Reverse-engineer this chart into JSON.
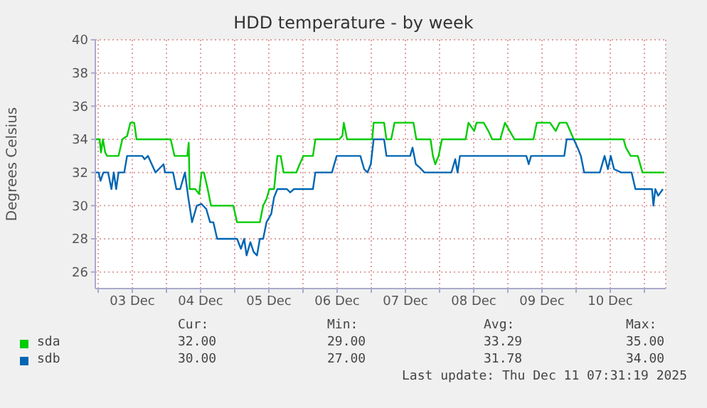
{
  "chart_data": {
    "type": "line",
    "title": "HDD temperature - by week",
    "ylabel": "Degrees Celsius",
    "xlim": [
      "2025-12-02T23:00",
      "2025-12-11T07:30"
    ],
    "xticks": [
      {
        "value": "2025-12-03T00:00",
        "label": null
      },
      {
        "value": "2025-12-03T12:00",
        "label": "03 Dec"
      },
      {
        "value": "2025-12-04T00:00",
        "label": null
      },
      {
        "value": "2025-12-04T12:00",
        "label": "04 Dec"
      },
      {
        "value": "2025-12-05T00:00",
        "label": null
      },
      {
        "value": "2025-12-05T12:00",
        "label": "05 Dec"
      },
      {
        "value": "2025-12-06T00:00",
        "label": null
      },
      {
        "value": "2025-12-06T12:00",
        "label": "06 Dec"
      },
      {
        "value": "2025-12-07T00:00",
        "label": null
      },
      {
        "value": "2025-12-07T12:00",
        "label": "07 Dec"
      },
      {
        "value": "2025-12-08T00:00",
        "label": null
      },
      {
        "value": "2025-12-08T12:00",
        "label": "08 Dec"
      },
      {
        "value": "2025-12-09T00:00",
        "label": null
      },
      {
        "value": "2025-12-09T12:00",
        "label": "09 Dec"
      },
      {
        "value": "2025-12-10T00:00",
        "label": null
      },
      {
        "value": "2025-12-10T12:00",
        "label": "10 Dec"
      },
      {
        "value": "2025-12-11T00:00",
        "label": null
      }
    ],
    "ylim": [
      25,
      40
    ],
    "yticks": [
      26,
      28,
      30,
      32,
      34,
      36,
      38,
      40
    ],
    "grid": true,
    "legend": "bottom",
    "marker": "none",
    "line_style": "solid",
    "series": [
      {
        "name": "sda",
        "color": "#00cc00",
        "x": [
          "2025-12-02T23:00",
          "2025-12-03T00:30",
          "2025-12-03T01:00",
          "2025-12-03T01:40",
          "2025-12-03T02:30",
          "2025-12-03T03:10",
          "2025-12-03T07:10",
          "2025-12-03T08:30",
          "2025-12-03T10:10",
          "2025-12-03T11:20",
          "2025-12-03T12:40",
          "2025-12-03T13:30",
          "2025-12-04T01:30",
          "2025-12-04T02:50",
          "2025-12-04T07:20",
          "2025-12-04T07:50",
          "2025-12-04T08:10",
          "2025-12-04T10:10",
          "2025-12-04T11:30",
          "2025-12-04T12:20",
          "2025-12-04T13:10",
          "2025-12-04T14:30",
          "2025-12-04T15:40",
          "2025-12-04T23:30",
          "2025-12-05T00:50",
          "2025-12-05T08:50",
          "2025-12-05T10:00",
          "2025-12-05T11:10",
          "2025-12-05T12:10",
          "2025-12-05T13:50",
          "2025-12-05T15:00",
          "2025-12-05T16:10",
          "2025-12-05T17:10",
          "2025-12-05T21:40",
          "2025-12-05T22:50",
          "2025-12-06T00:10",
          "2025-12-06T03:30",
          "2025-12-06T04:20",
          "2025-12-06T12:40",
          "2025-12-06T13:50",
          "2025-12-06T14:20",
          "2025-12-06T15:30",
          "2025-12-07T00:20",
          "2025-12-07T00:50",
          "2025-12-07T04:30",
          "2025-12-07T05:20",
          "2025-12-07T07:00",
          "2025-12-07T08:10",
          "2025-12-07T14:50",
          "2025-12-07T15:50",
          "2025-12-07T20:50",
          "2025-12-07T21:40",
          "2025-12-07T22:30",
          "2025-12-07T23:40",
          "2025-12-08T00:50",
          "2025-12-08T09:10",
          "2025-12-08T10:10",
          "2025-12-08T12:10",
          "2025-12-08T13:00",
          "2025-12-08T15:30",
          "2025-12-08T17:10",
          "2025-12-08T18:30",
          "2025-12-08T21:20",
          "2025-12-08T23:00",
          "2025-12-09T00:40",
          "2025-12-09T02:20",
          "2025-12-09T09:00",
          "2025-12-09T10:10",
          "2025-12-09T14:50",
          "2025-12-09T16:50",
          "2025-12-09T18:10",
          "2025-12-09T20:40",
          "2025-12-09T23:10",
          "2025-12-10T16:40",
          "2025-12-10T17:30",
          "2025-12-10T19:10",
          "2025-12-10T21:40",
          "2025-12-10T23:20",
          "2025-12-11T07:00"
        ],
        "values": [
          34,
          34,
          33.2,
          34,
          33.2,
          33,
          33,
          34,
          34.2,
          35,
          35,
          34,
          34,
          33,
          33,
          33.8,
          31,
          31,
          30.7,
          32,
          32,
          31,
          30,
          30,
          29,
          29,
          30,
          30.4,
          31,
          31,
          33,
          33,
          32,
          32,
          32.5,
          33,
          33,
          34,
          34,
          34.2,
          35,
          34,
          34,
          35,
          35,
          34,
          34,
          35,
          35,
          34,
          34,
          33,
          32.5,
          33,
          34,
          34,
          35,
          34.5,
          35,
          35,
          34.5,
          34,
          34,
          35,
          34.5,
          34,
          34,
          35,
          35,
          34.5,
          35,
          35,
          34,
          34,
          33.5,
          33,
          33,
          32,
          32
        ]
      },
      {
        "name": "sdb",
        "color": "#0066b3",
        "x": [
          "2025-12-02T23:00",
          "2025-12-03T00:10",
          "2025-12-03T00:50",
          "2025-12-03T01:50",
          "2025-12-03T03:30",
          "2025-12-03T04:40",
          "2025-12-03T05:30",
          "2025-12-03T06:20",
          "2025-12-03T07:10",
          "2025-12-03T09:10",
          "2025-12-03T10:10",
          "2025-12-03T15:30",
          "2025-12-03T16:20",
          "2025-12-03T17:30",
          "2025-12-03T18:50",
          "2025-12-03T20:10",
          "2025-12-03T23:00",
          "2025-12-03T23:30",
          "2025-12-04T02:20",
          "2025-12-04T03:30",
          "2025-12-04T04:50",
          "2025-12-04T06:30",
          "2025-12-04T07:40",
          "2025-12-04T09:00",
          "2025-12-04T10:40",
          "2025-12-04T12:20",
          "2025-12-04T14:00",
          "2025-12-04T15:20",
          "2025-12-04T16:30",
          "2025-12-04T17:50",
          "2025-12-05T00:50",
          "2025-12-05T02:10",
          "2025-12-05T03:20",
          "2025-12-05T04:10",
          "2025-12-05T05:30",
          "2025-12-05T06:40",
          "2025-12-05T07:50",
          "2025-12-05T08:50",
          "2025-12-05T10:00",
          "2025-12-05T11:10",
          "2025-12-05T12:50",
          "2025-12-05T13:50",
          "2025-12-05T15:00",
          "2025-12-05T18:20",
          "2025-12-05T19:30",
          "2025-12-05T20:50",
          "2025-12-06T03:30",
          "2025-12-06T04:20",
          "2025-12-06T10:10",
          "2025-12-06T11:50",
          "2025-12-06T20:10",
          "2025-12-06T21:30",
          "2025-12-06T22:40",
          "2025-12-06T23:50",
          "2025-12-07T00:50",
          "2025-12-07T04:30",
          "2025-12-07T05:20",
          "2025-12-07T13:40",
          "2025-12-07T14:30",
          "2025-12-07T15:40",
          "2025-12-07T17:00",
          "2025-12-07T18:40",
          "2025-12-08T04:10",
          "2025-12-08T05:30",
          "2025-12-08T06:20",
          "2025-12-08T07:10",
          "2025-12-09T06:30",
          "2025-12-09T07:20",
          "2025-12-09T08:10",
          "2025-12-09T19:50",
          "2025-12-09T20:40",
          "2025-12-09T23:10",
          "2025-12-10T00:30",
          "2025-12-10T01:40",
          "2025-12-10T02:50",
          "2025-12-10T08:20",
          "2025-12-10T10:00",
          "2025-12-10T11:10",
          "2025-12-10T12:10",
          "2025-12-10T13:20",
          "2025-12-10T15:50",
          "2025-12-10T19:30",
          "2025-12-10T20:50",
          "2025-12-11T02:40",
          "2025-12-11T03:10",
          "2025-12-11T03:50",
          "2025-12-11T04:50",
          "2025-12-11T06:30"
        ],
        "values": [
          32,
          32,
          31.5,
          32,
          32,
          31,
          32,
          31,
          32,
          32,
          33,
          33,
          32.8,
          33,
          32.5,
          32,
          32.5,
          32,
          32,
          31,
          31,
          32,
          30.5,
          29,
          30,
          30.1,
          29.8,
          29,
          29,
          28,
          28,
          27.4,
          28,
          27,
          27.8,
          27.2,
          27,
          28,
          28,
          29,
          29.5,
          30.5,
          31,
          31,
          30.8,
          31,
          31,
          32,
          32,
          33,
          33,
          32.2,
          32,
          32.5,
          34,
          34,
          33,
          33,
          33.5,
          32.5,
          32.3,
          32,
          32,
          32.8,
          32,
          33,
          33,
          32.5,
          33,
          33,
          34,
          34,
          33.5,
          33,
          32,
          32,
          33,
          32.2,
          33,
          32.2,
          32,
          32,
          31,
          31,
          30,
          31,
          30.6,
          31
        ]
      }
    ],
    "annotations": [
      "Cur:",
      "Min:",
      "Avg:",
      "Max:",
      "32.00",
      "29.00",
      "33.29",
      "35.00",
      "30.00",
      "27.00",
      "31.78",
      "34.00",
      "Last update: Thu Dec 11 07:31:19 2025"
    ]
  }
}
